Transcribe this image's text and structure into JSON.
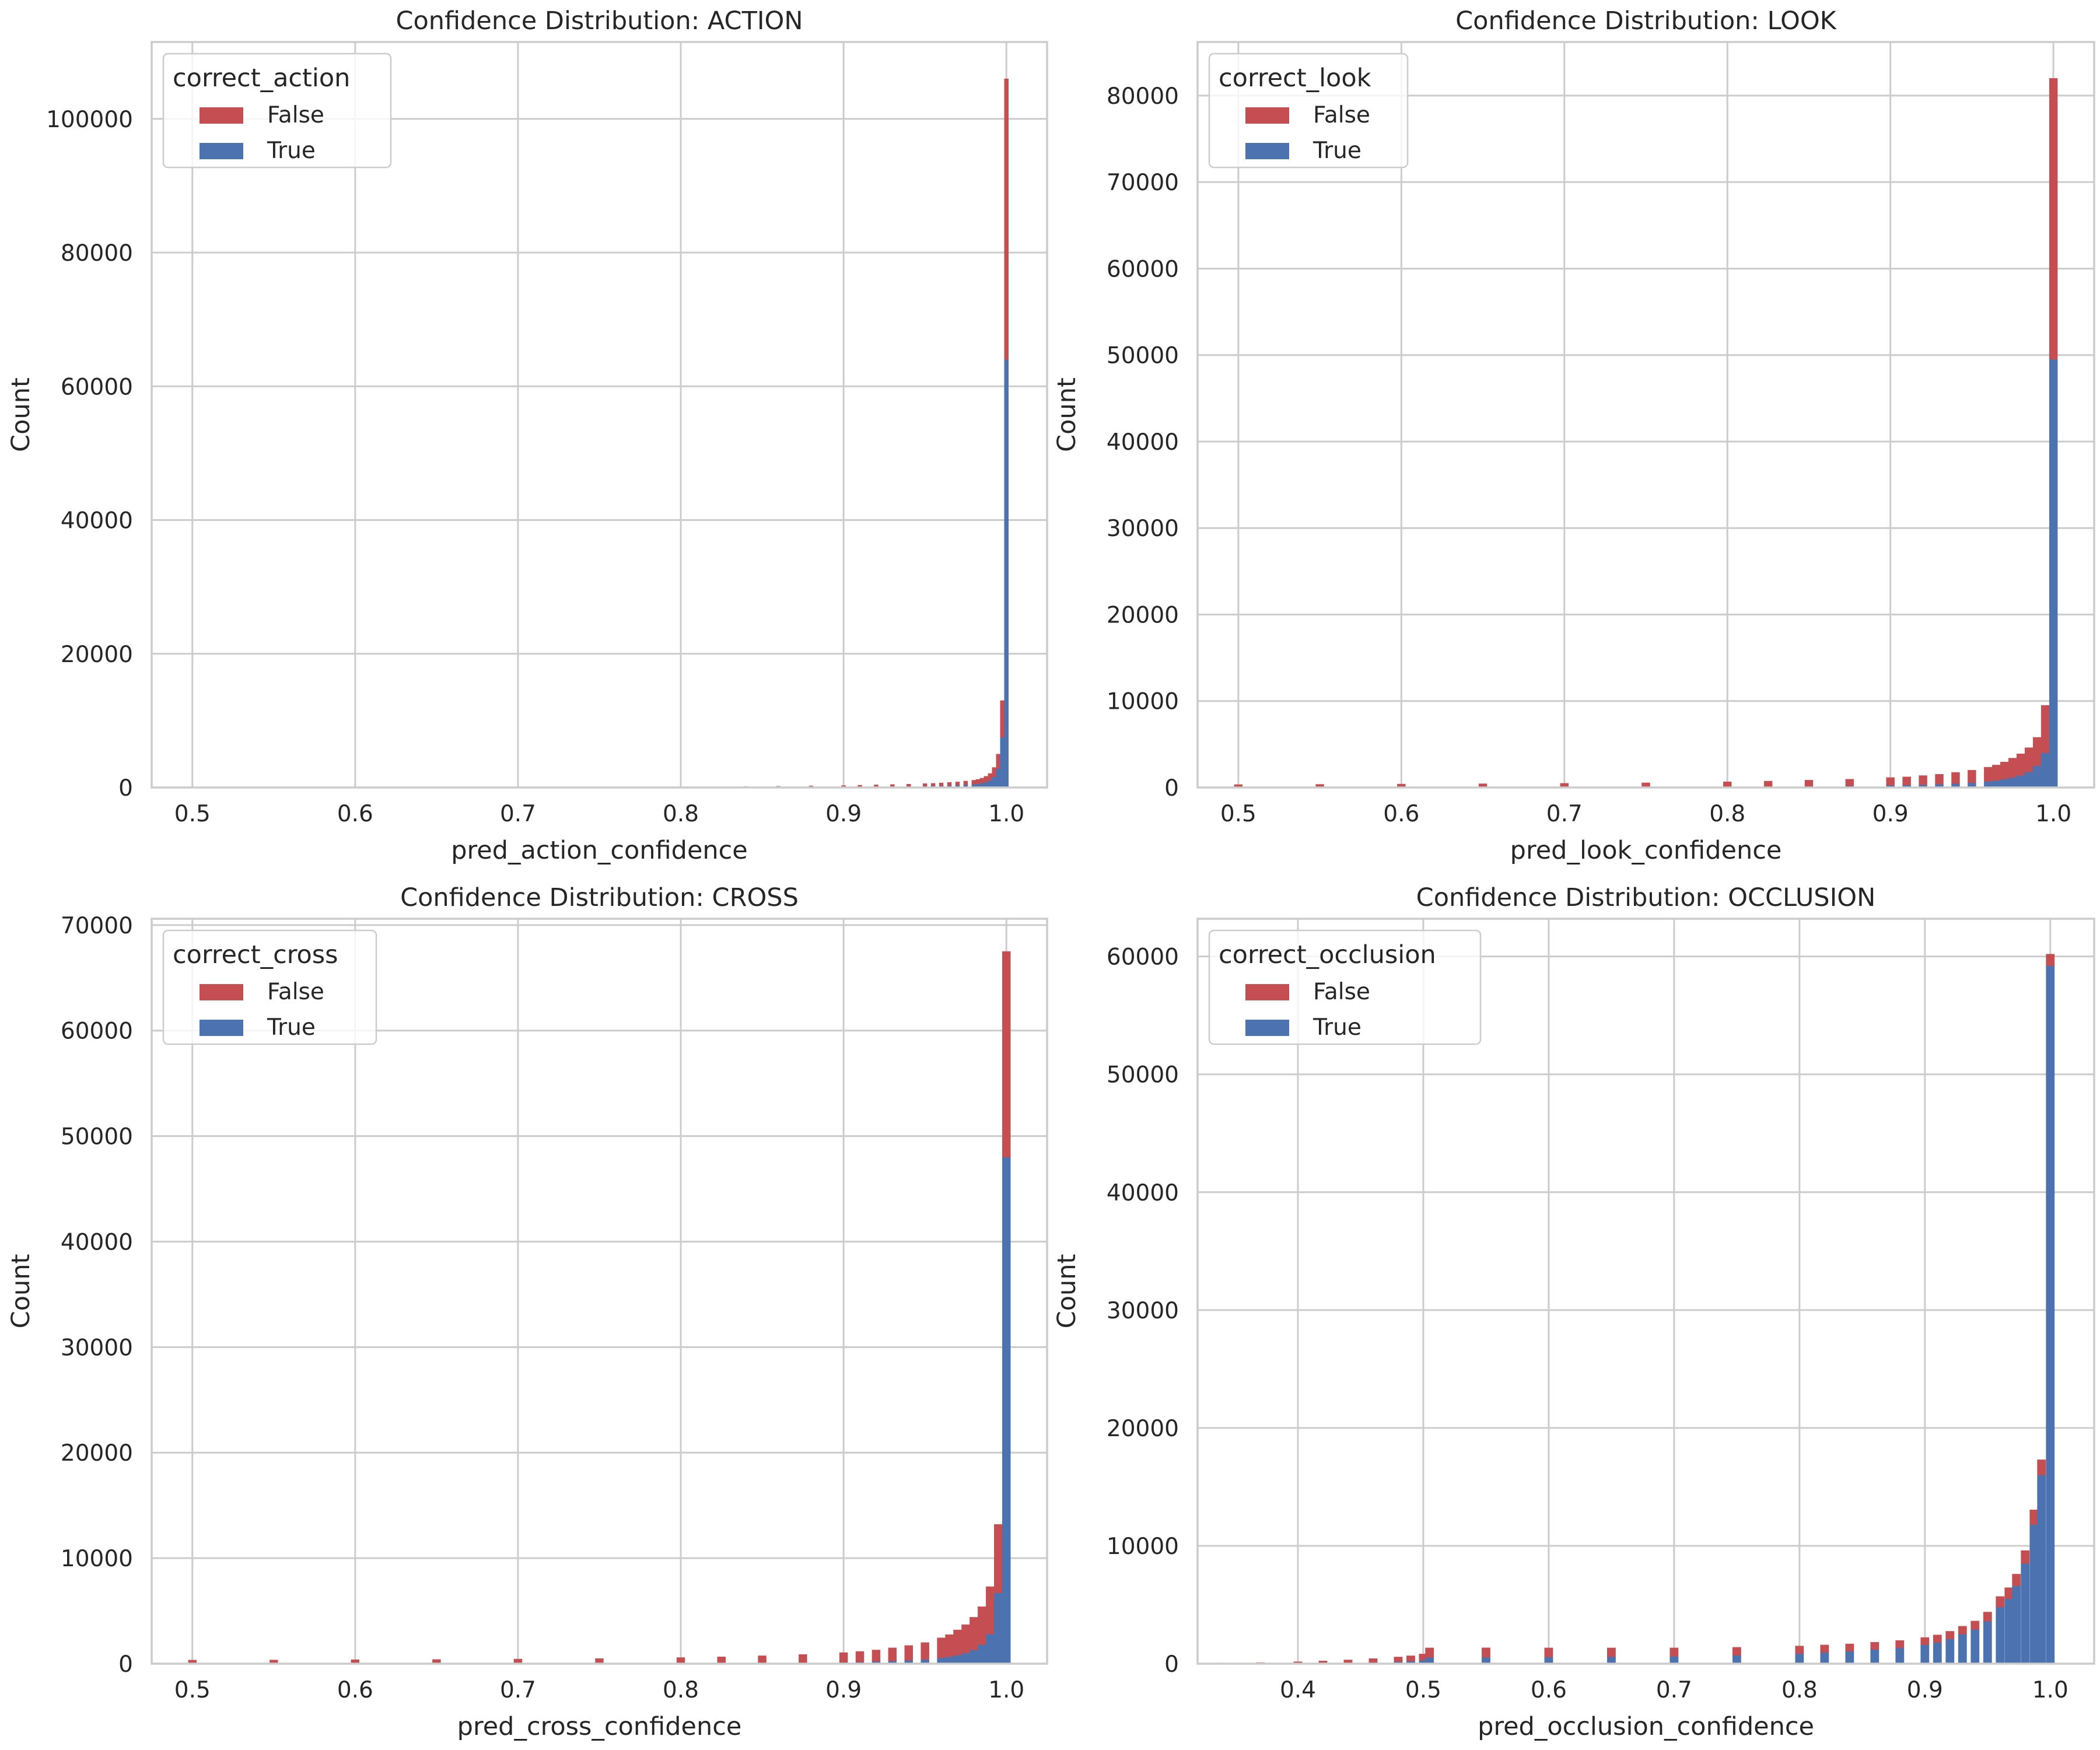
{
  "colors": {
    "false": "#c44e52",
    "true": "#4c72b0"
  },
  "chart_data": [
    {
      "type": "bar",
      "subtype": "stacked-histogram",
      "title": "Confidence Distribution: ACTION",
      "xlabel": "pred_action_confidence",
      "ylabel": "Count",
      "xlim": [
        0.475,
        1.025
      ],
      "ylim": [
        0,
        111500
      ],
      "xticks": [
        0.5,
        0.6,
        0.7,
        0.8,
        0.9,
        1.0
      ],
      "xtick_labels": [
        "0.5",
        "0.6",
        "0.7",
        "0.8",
        "0.9",
        "1.0"
      ],
      "yticks": [
        0,
        20000,
        40000,
        60000,
        80000,
        100000
      ],
      "ytick_labels": [
        "0",
        "20000",
        "40000",
        "60000",
        "80000",
        "100000"
      ],
      "legend": {
        "title": "correct_action",
        "placement": "upper-left",
        "entries": [
          "False",
          "True"
        ]
      },
      "bin_width": 0.0025,
      "series": [
        {
          "name": "False",
          "x": [
            0.84,
            0.86,
            0.88,
            0.9,
            0.91,
            0.92,
            0.93,
            0.94,
            0.95,
            0.955,
            0.96,
            0.965,
            0.97,
            0.975,
            0.98,
            0.9825,
            0.985,
            0.9875,
            0.99,
            0.9925,
            0.995,
            0.9975,
            1.0
          ],
          "values": [
            100,
            130,
            160,
            200,
            230,
            260,
            290,
            320,
            360,
            380,
            420,
            460,
            500,
            560,
            620,
            680,
            760,
            880,
            1050,
            1400,
            2200,
            5500,
            42000
          ]
        },
        {
          "name": "True",
          "x": [
            0.84,
            0.86,
            0.88,
            0.9,
            0.91,
            0.92,
            0.93,
            0.94,
            0.95,
            0.955,
            0.96,
            0.965,
            0.97,
            0.975,
            0.98,
            0.9825,
            0.985,
            0.9875,
            0.99,
            0.9925,
            0.995,
            0.9975,
            1.0
          ],
          "values": [
            50,
            60,
            80,
            100,
            120,
            140,
            160,
            180,
            220,
            240,
            270,
            300,
            340,
            400,
            470,
            540,
            640,
            800,
            1050,
            1600,
            2800,
            7500,
            64000
          ]
        }
      ]
    },
    {
      "type": "bar",
      "subtype": "stacked-histogram",
      "title": "Confidence Distribution: LOOK",
      "xlabel": "pred_look_confidence",
      "ylabel": "Count",
      "xlim": [
        0.475,
        1.025
      ],
      "ylim": [
        0,
        86200
      ],
      "xticks": [
        0.5,
        0.6,
        0.7,
        0.8,
        0.9,
        1.0
      ],
      "xtick_labels": [
        "0.5",
        "0.6",
        "0.7",
        "0.8",
        "0.9",
        "1.0"
      ],
      "yticks": [
        0,
        10000,
        20000,
        30000,
        40000,
        50000,
        60000,
        70000,
        80000
      ],
      "ytick_labels": [
        "0",
        "10000",
        "20000",
        "30000",
        "40000",
        "50000",
        "60000",
        "70000",
        "80000"
      ],
      "legend": {
        "title": "correct_look",
        "placement": "upper-left",
        "entries": [
          "False",
          "True"
        ]
      },
      "bin_width": 0.005,
      "series": [
        {
          "name": "False",
          "x": [
            0.5,
            0.55,
            0.6,
            0.65,
            0.7,
            0.75,
            0.8,
            0.825,
            0.85,
            0.875,
            0.9,
            0.91,
            0.92,
            0.93,
            0.94,
            0.95,
            0.96,
            0.965,
            0.97,
            0.975,
            0.98,
            0.985,
            0.99,
            0.995,
            1.0
          ],
          "values": [
            300,
            320,
            350,
            380,
            420,
            470,
            560,
            620,
            700,
            780,
            900,
            950,
            1050,
            1150,
            1300,
            1450,
            1650,
            1800,
            2000,
            2250,
            2500,
            2800,
            3300,
            5500,
            32500
          ]
        },
        {
          "name": "True",
          "x": [
            0.5,
            0.55,
            0.6,
            0.65,
            0.7,
            0.75,
            0.8,
            0.825,
            0.85,
            0.875,
            0.9,
            0.91,
            0.92,
            0.93,
            0.94,
            0.95,
            0.96,
            0.965,
            0.97,
            0.975,
            0.98,
            0.985,
            0.99,
            0.995,
            1.0
          ],
          "values": [
            40,
            45,
            50,
            55,
            65,
            75,
            100,
            120,
            150,
            180,
            250,
            280,
            330,
            380,
            450,
            550,
            700,
            800,
            950,
            1150,
            1400,
            1800,
            2500,
            4000,
            49500
          ]
        }
      ]
    },
    {
      "type": "bar",
      "subtype": "stacked-histogram",
      "title": "Confidence Distribution: CROSS",
      "xlabel": "pred_cross_confidence",
      "ylabel": "Count",
      "xlim": [
        0.475,
        1.025
      ],
      "ylim": [
        0,
        70600
      ],
      "xticks": [
        0.5,
        0.6,
        0.7,
        0.8,
        0.9,
        1.0
      ],
      "xtick_labels": [
        "0.5",
        "0.6",
        "0.7",
        "0.8",
        "0.9",
        "1.0"
      ],
      "yticks": [
        0,
        10000,
        20000,
        30000,
        40000,
        50000,
        60000,
        70000
      ],
      "ytick_labels": [
        "0",
        "10000",
        "20000",
        "30000",
        "40000",
        "50000",
        "60000",
        "70000"
      ],
      "legend": {
        "title": "correct_cross",
        "placement": "upper-left",
        "entries": [
          "False",
          "True"
        ]
      },
      "bin_width": 0.005,
      "series": [
        {
          "name": "False",
          "x": [
            0.5,
            0.55,
            0.6,
            0.65,
            0.7,
            0.75,
            0.8,
            0.825,
            0.85,
            0.875,
            0.9,
            0.91,
            0.92,
            0.93,
            0.94,
            0.95,
            0.96,
            0.965,
            0.97,
            0.975,
            0.98,
            0.985,
            0.99,
            0.995,
            1.0
          ],
          "values": [
            330,
            340,
            360,
            380,
            420,
            460,
            540,
            600,
            680,
            780,
            920,
            1000,
            1100,
            1250,
            1400,
            1600,
            1900,
            2100,
            2400,
            2700,
            3100,
            3600,
            4500,
            6500,
            19500
          ]
        },
        {
          "name": "True",
          "x": [
            0.5,
            0.55,
            0.6,
            0.65,
            0.7,
            0.75,
            0.8,
            0.825,
            0.85,
            0.875,
            0.9,
            0.91,
            0.92,
            0.93,
            0.94,
            0.95,
            0.96,
            0.965,
            0.97,
            0.975,
            0.98,
            0.985,
            0.99,
            0.995,
            1.0
          ],
          "values": [
            10,
            12,
            14,
            16,
            20,
            25,
            40,
            50,
            70,
            90,
            130,
            160,
            200,
            250,
            320,
            400,
            550,
            650,
            800,
            1000,
            1300,
            1800,
            2800,
            6700,
            48000
          ]
        }
      ]
    },
    {
      "type": "bar",
      "subtype": "stacked-histogram",
      "title": "Confidence Distribution: OCCLUSION",
      "xlabel": "pred_occlusion_confidence",
      "ylabel": "Count",
      "xlim": [
        0.32,
        1.035
      ],
      "ylim": [
        0,
        63200
      ],
      "xticks": [
        0.4,
        0.5,
        0.6,
        0.7,
        0.8,
        0.9,
        1.0
      ],
      "xtick_labels": [
        "0.4",
        "0.5",
        "0.6",
        "0.7",
        "0.8",
        "0.9",
        "1.0"
      ],
      "yticks": [
        0,
        10000,
        20000,
        30000,
        40000,
        50000,
        60000
      ],
      "ytick_labels": [
        "0",
        "10000",
        "20000",
        "30000",
        "40000",
        "50000",
        "60000"
      ],
      "legend": {
        "title": "correct_occlusion",
        "placement": "upper-left",
        "entries": [
          "False",
          "True"
        ]
      },
      "bin_width": 0.00667,
      "series": [
        {
          "name": "False",
          "x": [
            0.34,
            0.37,
            0.4,
            0.42,
            0.44,
            0.46,
            0.48,
            0.49,
            0.5,
            0.505,
            0.55,
            0.6,
            0.65,
            0.7,
            0.75,
            0.8,
            0.82,
            0.84,
            0.86,
            0.88,
            0.9,
            0.91,
            0.92,
            0.93,
            0.94,
            0.95,
            0.96,
            0.967,
            0.973,
            0.98,
            0.987,
            0.993,
            1.0
          ],
          "values": [
            60,
            90,
            150,
            200,
            260,
            330,
            410,
            470,
            540,
            820,
            810,
            780,
            760,
            720,
            690,
            650,
            640,
            630,
            620,
            620,
            620,
            640,
            650,
            680,
            720,
            780,
            900,
            950,
            1000,
            1100,
            1250,
            1300,
            1000
          ]
        },
        {
          "name": "True",
          "x": [
            0.34,
            0.37,
            0.4,
            0.42,
            0.44,
            0.46,
            0.48,
            0.49,
            0.5,
            0.505,
            0.55,
            0.6,
            0.65,
            0.7,
            0.75,
            0.8,
            0.82,
            0.84,
            0.86,
            0.88,
            0.9,
            0.91,
            0.92,
            0.93,
            0.94,
            0.95,
            0.96,
            0.967,
            0.973,
            0.98,
            0.987,
            0.993,
            1.0
          ],
          "values": [
            5,
            8,
            15,
            30,
            60,
            100,
            160,
            200,
            280,
            520,
            540,
            560,
            580,
            620,
            700,
            850,
            950,
            1050,
            1200,
            1350,
            1600,
            1800,
            2100,
            2500,
            2900,
            3600,
            4800,
            5500,
            6600,
            8500,
            11800,
            16000,
            59200
          ]
        }
      ]
    }
  ]
}
